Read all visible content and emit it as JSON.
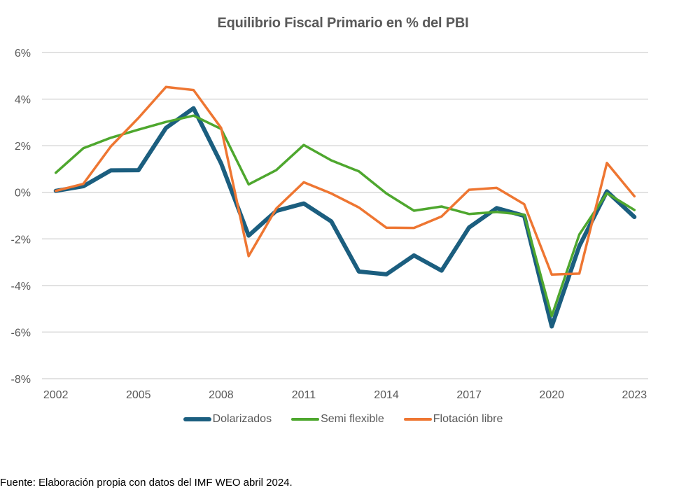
{
  "chart_data": {
    "type": "line",
    "title": "Equilibrio Fiscal Primario en % del PBI",
    "xlabel": "",
    "ylabel": "",
    "x": [
      2002,
      2003,
      2004,
      2005,
      2006,
      2007,
      2008,
      2009,
      2010,
      2011,
      2012,
      2013,
      2014,
      2015,
      2016,
      2017,
      2018,
      2019,
      2020,
      2021,
      2022,
      2023
    ],
    "x_tick_labels": [
      "2002",
      "2005",
      "2008",
      "2011",
      "2014",
      "2017",
      "2020",
      "2023"
    ],
    "x_tick_values": [
      2002,
      2005,
      2008,
      2011,
      2014,
      2017,
      2020,
      2023
    ],
    "y_tick_values": [
      6,
      4,
      2,
      0,
      -2,
      -4,
      -6,
      -8
    ],
    "y_tick_labels": [
      "6%",
      "4%",
      "2%",
      "0%",
      "-2%",
      "-4%",
      "-6%",
      "-8%"
    ],
    "ylim": [
      -8,
      6
    ],
    "grid": true,
    "legend_position": "bottom",
    "series": [
      {
        "name": "Dolarizados",
        "color": "#1b5e7f",
        "values": [
          0.06,
          0.26,
          0.94,
          0.95,
          2.76,
          3.61,
          1.24,
          -1.86,
          -0.8,
          -0.48,
          -1.25,
          -3.4,
          -3.52,
          -2.71,
          -3.36,
          -1.51,
          -0.68,
          -1.01,
          -5.76,
          -2.31,
          0.04,
          -1.06
        ]
      },
      {
        "name": "Semi flexible",
        "color": "#4ea72e",
        "values": [
          0.84,
          1.89,
          2.34,
          2.69,
          3.02,
          3.29,
          2.72,
          0.34,
          0.95,
          2.03,
          1.37,
          0.9,
          -0.05,
          -0.79,
          -0.61,
          -0.93,
          -0.84,
          -0.96,
          -5.31,
          -1.81,
          -0.04,
          -0.76
        ]
      },
      {
        "name": "Flotación libre",
        "color": "#ee7632",
        "values": [
          0.06,
          0.36,
          1.97,
          3.19,
          4.52,
          4.39,
          2.76,
          -2.74,
          -0.7,
          0.43,
          -0.05,
          -0.65,
          -1.52,
          -1.53,
          -1.04,
          0.11,
          0.19,
          -0.51,
          -3.53,
          -3.49,
          1.26,
          -0.17
        ]
      }
    ]
  },
  "footer": {
    "source": "Fuente: Elaboración propia con datos del IMF WEO abril 2024."
  }
}
